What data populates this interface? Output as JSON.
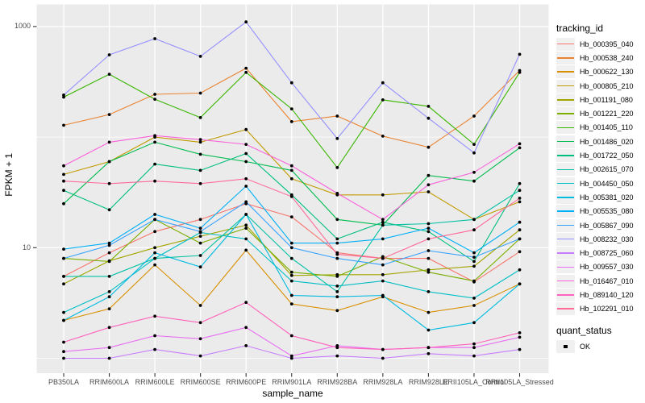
{
  "figure": {
    "background": "#FFFFFF",
    "panel_background": "#EBEBEB",
    "gridline_color": "#FFFFFF",
    "tick_color": "#333333",
    "tick_label_color": "#4D4D4D",
    "point_color": "#000000"
  },
  "chart_data": {
    "type": "line",
    "title": "",
    "xlabel": "sample_name",
    "ylabel": "FPKM + 1",
    "y_scale": "log10",
    "ylim": [
      0.75,
      1500
    ],
    "grid": "on",
    "legend_position": "right",
    "y_ticks": [
      {
        "label": "1000",
        "value": 1000
      },
      {
        "label": "10",
        "value": 10
      }
    ],
    "y_minor_gridlines": [
      1,
      100
    ],
    "categories": [
      "PB350LA",
      "RRIM600LA",
      "RRIM600LE",
      "RRIM600SE",
      "RRIM600PE",
      "RRIM901LA",
      "RRIM928BA",
      "RRIM928LA",
      "RRIM928LE",
      "RRII105LA_Control",
      "RRII105LA_Stressed"
    ],
    "series": [
      {
        "name": "Hb_000395_040",
        "color": "#F8766D",
        "values": [
          5.5,
          9,
          14,
          18,
          25,
          19,
          9,
          8,
          8,
          4.9,
          9.2
        ]
      },
      {
        "name": "Hb_000538_240",
        "color": "#EA8331",
        "values": [
          128,
          160,
          244,
          250,
          420,
          138,
          155,
          102,
          81,
          155,
          400
        ]
      },
      {
        "name": "Hb_000622_130",
        "color": "#D89000",
        "values": [
          2.2,
          2.8,
          7,
          3,
          9.5,
          3.1,
          2.7,
          3.6,
          2.6,
          3.0,
          4.7
        ]
      },
      {
        "name": "Hb_000805_210",
        "color": "#C09B00",
        "values": [
          46,
          60,
          100,
          90,
          117,
          42,
          30,
          30,
          32,
          18,
          26
        ]
      },
      {
        "name": "Hb_001191_080",
        "color": "#A3A500",
        "values": [
          4.7,
          7.6,
          10,
          12.7,
          16,
          5.6,
          5.7,
          5.7,
          6.3,
          6.8,
          14.5
        ]
      },
      {
        "name": "Hb_001221_220",
        "color": "#7CAE00",
        "values": [
          8.0,
          7.5,
          18,
          11,
          15,
          6.0,
          5.5,
          8.3,
          6.0,
          5.0,
          12
        ]
      },
      {
        "name": "Hb_001405_110",
        "color": "#39B600",
        "values": [
          230,
          370,
          220,
          150,
          385,
          180,
          53,
          217,
          190,
          86,
          385
        ]
      },
      {
        "name": "Hb_001486_020",
        "color": "#00BB4E",
        "values": [
          25,
          60,
          90,
          70,
          60,
          50,
          18,
          16,
          45,
          40,
          80
        ]
      },
      {
        "name": "Hb_001722_050",
        "color": "#00BF7D",
        "values": [
          33,
          22,
          57,
          50,
          71,
          30,
          12,
          17,
          14,
          7.5,
          38
        ]
      },
      {
        "name": "Hb_002615_070",
        "color": "#00C1A3",
        "values": [
          5.5,
          5.5,
          8,
          8.5,
          20,
          8,
          4,
          16,
          16.5,
          18,
          33
        ]
      },
      {
        "name": "Hb_004450_050",
        "color": "#00BFC4",
        "values": [
          2.6,
          4,
          8,
          13.7,
          12,
          5,
          4.5,
          5,
          4,
          3.5,
          6.3
        ]
      },
      {
        "name": "Hb_005381_020",
        "color": "#00BAE0",
        "values": [
          2.2,
          3.6,
          9,
          6.7,
          20,
          3.7,
          3.6,
          3.7,
          1.8,
          2.1,
          4.7
        ]
      },
      {
        "name": "Hb_005535_080",
        "color": "#00B0F6",
        "values": [
          9.7,
          11,
          20,
          15,
          36,
          11,
          11,
          12,
          15,
          9,
          17
        ]
      },
      {
        "name": "Hb_005867_090",
        "color": "#35A2FF",
        "values": [
          8.0,
          10.5,
          18,
          14,
          26,
          10,
          8,
          7,
          9.4,
          8.2,
          12
        ]
      },
      {
        "name": "Hb_008232_030",
        "color": "#9590FF",
        "values": [
          240,
          555,
          776,
          537,
          1100,
          310,
          97,
          310,
          148,
          72,
          560
        ]
      },
      {
        "name": "Hb_008725_060",
        "color": "#C77CFF",
        "values": [
          1.0,
          1.0,
          1.2,
          1.05,
          1.3,
          1.0,
          1.05,
          1.0,
          1.1,
          1.05,
          1.2
        ]
      },
      {
        "name": "Hb_009557_030",
        "color": "#E76BF3",
        "values": [
          1.15,
          1.25,
          1.6,
          1.5,
          1.9,
          1.05,
          1.3,
          1.2,
          1.25,
          1.25,
          1.55
        ]
      },
      {
        "name": "Hb_016467_010",
        "color": "#FA62DB",
        "values": [
          55,
          90,
          103,
          95,
          86,
          55,
          31,
          18,
          37,
          48,
          87
        ]
      },
      {
        "name": "Hb_089140_120",
        "color": "#FF62BC",
        "values": [
          1.4,
          1.9,
          2.4,
          2.1,
          3.2,
          1.6,
          1.25,
          1.2,
          1.25,
          1.35,
          1.7
        ]
      },
      {
        "name": "Hb_102291_010",
        "color": "#FF6A98",
        "values": [
          40,
          38,
          40,
          38,
          42,
          29,
          8.7,
          8,
          12,
          14.5,
          28
        ]
      }
    ]
  },
  "legend": {
    "tracking_title": "tracking_id",
    "quant_title": "quant_status",
    "quant_ok_label": "OK"
  }
}
